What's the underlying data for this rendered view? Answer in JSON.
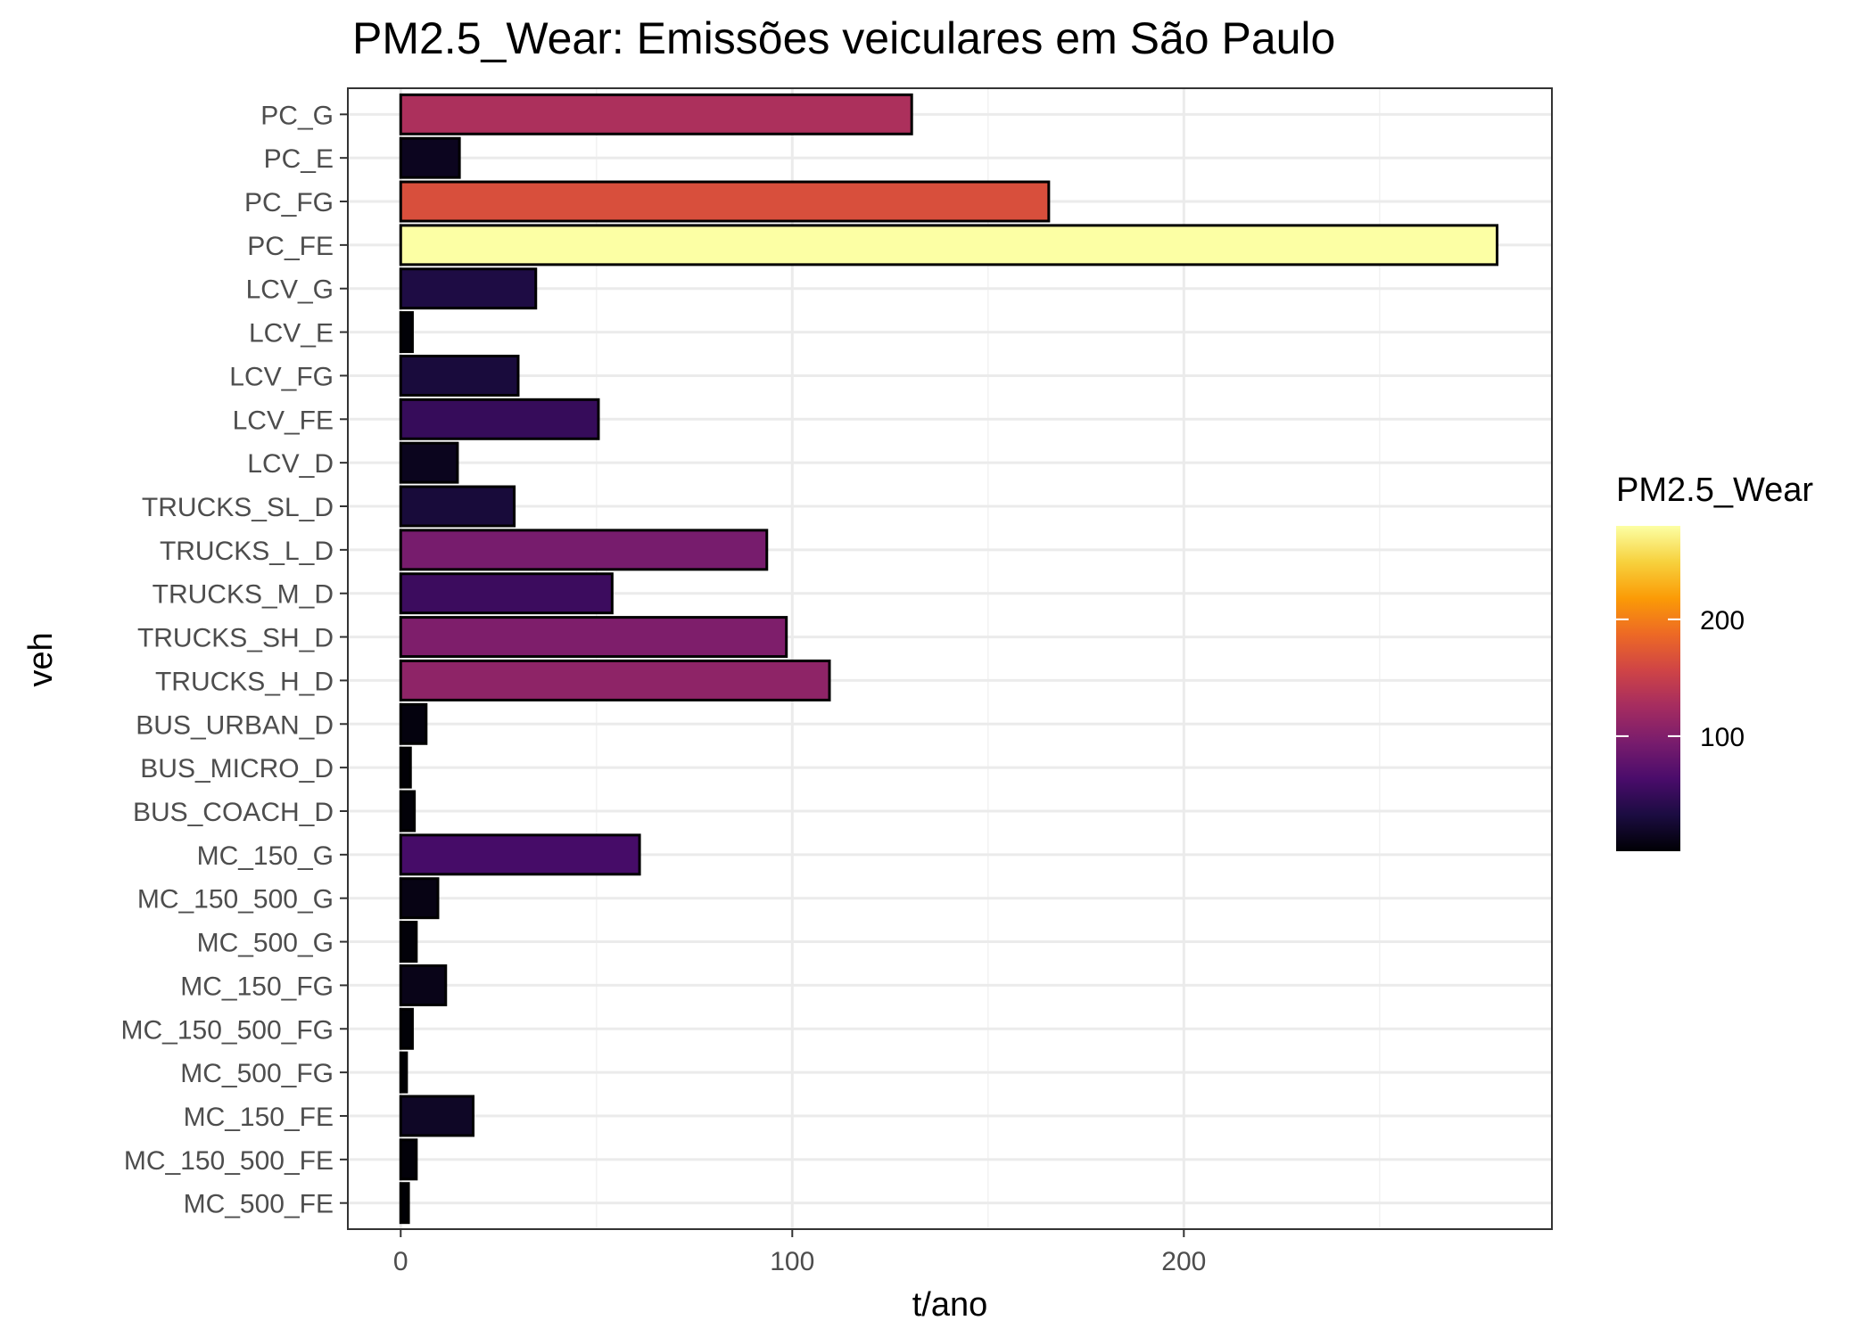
{
  "chart_data": {
    "type": "bar",
    "orientation": "horizontal",
    "title": "PM2.5_Wear: Emissões veiculares em São Paulo",
    "xlabel": "t/ano",
    "ylabel": "veh",
    "xlim": [
      -13.5,
      294
    ],
    "xticks": [
      0,
      100,
      200
    ],
    "grid": true,
    "categories": [
      "PC_G",
      "PC_E",
      "PC_FG",
      "PC_FE",
      "LCV_G",
      "LCV_E",
      "LCV_FG",
      "LCV_FE",
      "LCV_D",
      "TRUCKS_SL_D",
      "TRUCKS_L_D",
      "TRUCKS_M_D",
      "TRUCKS_SH_D",
      "TRUCKS_H_D",
      "BUS_URBAN_D",
      "BUS_MICRO_D",
      "BUS_COACH_D",
      "MC_150_G",
      "MC_150_500_G",
      "MC_500_G",
      "MC_150_FG",
      "MC_150_500_FG",
      "MC_500_FG",
      "MC_150_FE",
      "MC_150_500_FE",
      "MC_500_FE"
    ],
    "values": [
      130.5,
      15,
      165.5,
      280,
      34.5,
      3,
      30,
      50.5,
      14.5,
      29,
      93.5,
      54,
      98.5,
      109.5,
      6.5,
      2.5,
      3.5,
      61,
      9.5,
      4,
      11.5,
      3,
      1.5,
      18.5,
      4,
      2
    ],
    "legend": {
      "title": "PM2.5_Wear",
      "position": "right",
      "type": "colorbar",
      "palette": "inferno",
      "range": [
        1.5,
        280
      ],
      "ticks": [
        100,
        200
      ],
      "tick_labels": [
        "100",
        "200"
      ]
    }
  }
}
